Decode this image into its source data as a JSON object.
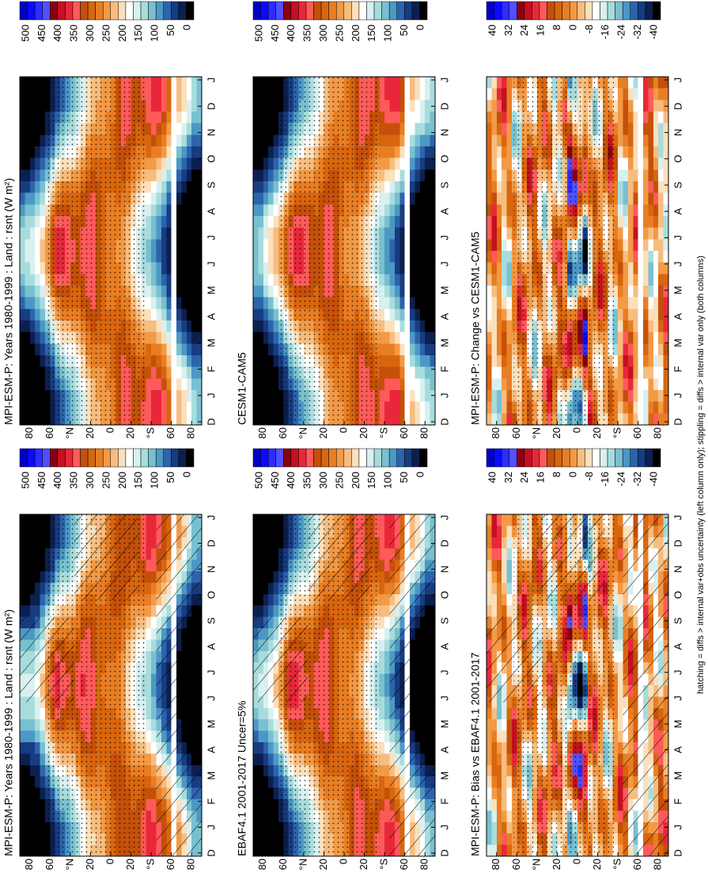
{
  "footnote": "hatching = diffs > internal var+obs uncertainty (left column only); stippling = diffs > internal var only (both columns)",
  "palette": [
    "#0000c8",
    "#0a0aff",
    "#2d2dff",
    "#5050ff",
    "#8b0010",
    "#c41020",
    "#e8283a",
    "#ff5a5a",
    "#c4500a",
    "#d8660f",
    "#e87e24",
    "#f29a46",
    "#f7bd80",
    "#fbe0bc",
    "#ffffff",
    "#d8f0f0",
    "#a8dcdc",
    "#78c0d0",
    "#4c98c4",
    "#2c64ac",
    "#183c80",
    "#0c2050",
    "#000000"
  ],
  "axis": {
    "months": [
      "D",
      "J",
      "F",
      "M",
      "A",
      "M",
      "J",
      "J",
      "A",
      "S",
      "O",
      "N",
      "D",
      "J"
    ],
    "latitudes": [
      "80",
      "60",
      "°N",
      "20",
      "0",
      "20",
      "°S",
      "60",
      "80"
    ]
  },
  "colorbars": {
    "absolute": [
      "500",
      "450",
      "400",
      "350",
      "300",
      "250",
      "200",
      "150",
      "100",
      "50",
      "0"
    ],
    "difference": [
      "40",
      "32",
      "24",
      "16",
      "8",
      "0",
      "-8",
      "-16",
      "-24",
      "-32",
      "-40"
    ]
  },
  "panels": [
    {
      "title": "MPI-ESM-P: Years 1980-1999 : Land : rsnt (W m²)"
    },
    {
      "title": "MPI-ESM-P: Years 1980-1999 : Land : rsnt (W m²)"
    },
    {
      "title": "EBAF4.1 2001-2017 Uncer=5%"
    },
    {
      "title": "CESM1-CAM5"
    },
    {
      "title": "MPI-ESM-P: Bias vs EBAF4.1 2001-2017"
    },
    {
      "title": "MPI-ESM-P: Change vs CESM1-CAM5"
    }
  ]
}
